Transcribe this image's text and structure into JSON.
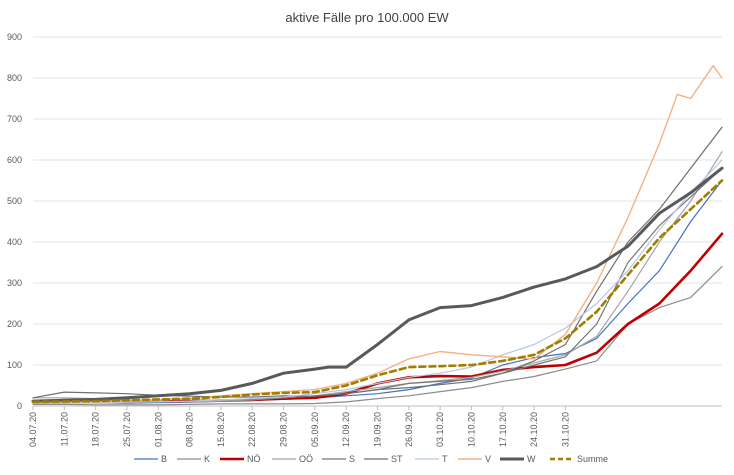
{
  "chart_data": {
    "type": "line",
    "title": "aktive Fälle pro 100.000 EW",
    "xlabel": "",
    "ylabel": "",
    "ylim": [
      0,
      900
    ],
    "yticks": [
      "0",
      "100",
      "200",
      "300",
      "400",
      "500",
      "600",
      "700",
      "800",
      "900"
    ],
    "xticks": [
      "04.07.20",
      "11.07.20",
      "18.07.20",
      "25.07.20",
      "01.08.20",
      "08.08.20",
      "15.08.20",
      "22.08.20",
      "29.08.20",
      "05.09.20",
      "12.09.20",
      "19.09.20",
      "26.09.20",
      "03.10.20",
      "10.10.20",
      "17.10.20",
      "24.10.20",
      "31.10.20"
    ],
    "grid": true,
    "legend_position": "bottom",
    "x_start": "04.07.20",
    "x_end": "04.11.20",
    "series": [
      {
        "name": "B",
        "color": "#4472c4",
        "width": 1.2,
        "dash": "",
        "points": [
          [
            0,
            8
          ],
          [
            7,
            9
          ],
          [
            14,
            8
          ],
          [
            21,
            7
          ],
          [
            28,
            8
          ],
          [
            35,
            9
          ],
          [
            42,
            12
          ],
          [
            49,
            14
          ],
          [
            56,
            16
          ],
          [
            63,
            20
          ],
          [
            70,
            25
          ],
          [
            77,
            30
          ],
          [
            84,
            40
          ],
          [
            91,
            55
          ],
          [
            98,
            68
          ],
          [
            105,
            100
          ],
          [
            112,
            118
          ],
          [
            119,
            128
          ],
          [
            126,
            165
          ],
          [
            133,
            250
          ],
          [
            140,
            330
          ],
          [
            147,
            450
          ],
          [
            154,
            550
          ]
        ]
      },
      {
        "name": "K",
        "color": "#8c8c8c",
        "width": 1.2,
        "dash": "",
        "points": [
          [
            0,
            4
          ],
          [
            7,
            4
          ],
          [
            14,
            3
          ],
          [
            21,
            3
          ],
          [
            28,
            3
          ],
          [
            35,
            4
          ],
          [
            42,
            5
          ],
          [
            49,
            5
          ],
          [
            56,
            5
          ],
          [
            63,
            6
          ],
          [
            70,
            10
          ],
          [
            77,
            18
          ],
          [
            84,
            25
          ],
          [
            91,
            35
          ],
          [
            98,
            45
          ],
          [
            105,
            60
          ],
          [
            112,
            72
          ],
          [
            119,
            90
          ],
          [
            126,
            110
          ],
          [
            133,
            200
          ],
          [
            140,
            240
          ],
          [
            147,
            265
          ],
          [
            154,
            340
          ]
        ]
      },
      {
        "name": "NÖ",
        "color": "#c00000",
        "width": 2.6,
        "dash": "",
        "points": [
          [
            0,
            10
          ],
          [
            7,
            10
          ],
          [
            14,
            10
          ],
          [
            21,
            11
          ],
          [
            28,
            12
          ],
          [
            35,
            12
          ],
          [
            42,
            13
          ],
          [
            49,
            15
          ],
          [
            56,
            18
          ],
          [
            63,
            20
          ],
          [
            70,
            30
          ],
          [
            77,
            55
          ],
          [
            84,
            70
          ],
          [
            91,
            73
          ],
          [
            98,
            72
          ],
          [
            105,
            88
          ],
          [
            112,
            95
          ],
          [
            119,
            100
          ],
          [
            126,
            130
          ],
          [
            133,
            200
          ],
          [
            140,
            250
          ],
          [
            147,
            330
          ],
          [
            154,
            420
          ]
        ]
      },
      {
        "name": "OÖ",
        "color": "#a5a5a5",
        "width": 1.2,
        "dash": "",
        "points": [
          [
            0,
            20
          ],
          [
            7,
            20
          ],
          [
            14,
            18
          ],
          [
            21,
            15
          ],
          [
            28,
            12
          ],
          [
            35,
            10
          ],
          [
            42,
            12
          ],
          [
            49,
            15
          ],
          [
            56,
            20
          ],
          [
            63,
            25
          ],
          [
            70,
            35
          ],
          [
            77,
            45
          ],
          [
            84,
            55
          ],
          [
            91,
            62
          ],
          [
            98,
            70
          ],
          [
            105,
            85
          ],
          [
            112,
            105
          ],
          [
            119,
            125
          ],
          [
            126,
            170
          ],
          [
            133,
            280
          ],
          [
            140,
            400
          ],
          [
            147,
            500
          ],
          [
            154,
            620
          ]
        ]
      },
      {
        "name": "S",
        "color": "#767676",
        "width": 1.2,
        "dash": "",
        "points": [
          [
            0,
            12
          ],
          [
            7,
            12
          ],
          [
            14,
            11
          ],
          [
            21,
            10
          ],
          [
            28,
            10
          ],
          [
            35,
            12
          ],
          [
            42,
            15
          ],
          [
            49,
            16
          ],
          [
            56,
            20
          ],
          [
            63,
            25
          ],
          [
            70,
            30
          ],
          [
            77,
            40
          ],
          [
            84,
            55
          ],
          [
            91,
            60
          ],
          [
            98,
            65
          ],
          [
            105,
            80
          ],
          [
            112,
            100
          ],
          [
            119,
            120
          ],
          [
            126,
            200
          ],
          [
            133,
            350
          ],
          [
            140,
            440
          ],
          [
            147,
            510
          ],
          [
            154,
            580
          ]
        ]
      },
      {
        "name": "ST",
        "color": "#6f6f6f",
        "width": 1.2,
        "dash": "",
        "points": [
          [
            0,
            20
          ],
          [
            7,
            34
          ],
          [
            14,
            32
          ],
          [
            21,
            30
          ],
          [
            28,
            26
          ],
          [
            35,
            24
          ],
          [
            42,
            22
          ],
          [
            49,
            22
          ],
          [
            56,
            25
          ],
          [
            63,
            24
          ],
          [
            70,
            30
          ],
          [
            77,
            40
          ],
          [
            84,
            45
          ],
          [
            91,
            52
          ],
          [
            98,
            60
          ],
          [
            105,
            80
          ],
          [
            112,
            110
          ],
          [
            119,
            150
          ],
          [
            126,
            280
          ],
          [
            133,
            400
          ],
          [
            140,
            480
          ],
          [
            147,
            580
          ],
          [
            154,
            680
          ]
        ]
      },
      {
        "name": "T",
        "color": "#b4c7e7",
        "width": 1.2,
        "dash": "",
        "points": [
          [
            0,
            8
          ],
          [
            7,
            8
          ],
          [
            14,
            8
          ],
          [
            21,
            9
          ],
          [
            28,
            10
          ],
          [
            35,
            12
          ],
          [
            42,
            15
          ],
          [
            49,
            18
          ],
          [
            56,
            22
          ],
          [
            63,
            30
          ],
          [
            70,
            40
          ],
          [
            77,
            55
          ],
          [
            84,
            70
          ],
          [
            91,
            80
          ],
          [
            98,
            95
          ],
          [
            105,
            125
          ],
          [
            112,
            150
          ],
          [
            119,
            190
          ],
          [
            126,
            250
          ],
          [
            133,
            330
          ],
          [
            140,
            430
          ],
          [
            147,
            520
          ],
          [
            154,
            600
          ]
        ]
      },
      {
        "name": "V",
        "color": "#f4b183",
        "width": 1.4,
        "dash": "",
        "points": [
          [
            0,
            10
          ],
          [
            7,
            10
          ],
          [
            14,
            10
          ],
          [
            21,
            12
          ],
          [
            28,
            15
          ],
          [
            35,
            18
          ],
          [
            42,
            25
          ],
          [
            49,
            30
          ],
          [
            56,
            35
          ],
          [
            63,
            40
          ],
          [
            70,
            55
          ],
          [
            77,
            80
          ],
          [
            84,
            115
          ],
          [
            91,
            133
          ],
          [
            98,
            125
          ],
          [
            105,
            120
          ],
          [
            112,
            115
          ],
          [
            119,
            175
          ],
          [
            126,
            300
          ],
          [
            133,
            460
          ],
          [
            140,
            640
          ],
          [
            144,
            760
          ],
          [
            147,
            750
          ],
          [
            152,
            830
          ],
          [
            154,
            800
          ]
        ]
      },
      {
        "name": "W",
        "color": "#595959",
        "width": 3.0,
        "dash": "",
        "points": [
          [
            0,
            12
          ],
          [
            7,
            14
          ],
          [
            14,
            16
          ],
          [
            21,
            20
          ],
          [
            28,
            25
          ],
          [
            35,
            30
          ],
          [
            42,
            38
          ],
          [
            49,
            55
          ],
          [
            56,
            80
          ],
          [
            63,
            90
          ],
          [
            66,
            95
          ],
          [
            70,
            95
          ],
          [
            77,
            150
          ],
          [
            84,
            210
          ],
          [
            91,
            240
          ],
          [
            98,
            245
          ],
          [
            105,
            265
          ],
          [
            112,
            290
          ],
          [
            119,
            310
          ],
          [
            126,
            340
          ],
          [
            133,
            390
          ],
          [
            140,
            470
          ],
          [
            147,
            520
          ],
          [
            154,
            580
          ]
        ]
      },
      {
        "name": "Summe",
        "color": "#a07f00",
        "width": 2.6,
        "dash": "6,4",
        "points": [
          [
            0,
            10
          ],
          [
            7,
            11
          ],
          [
            14,
            12
          ],
          [
            21,
            14
          ],
          [
            28,
            16
          ],
          [
            35,
            18
          ],
          [
            42,
            22
          ],
          [
            49,
            28
          ],
          [
            56,
            32
          ],
          [
            63,
            34
          ],
          [
            70,
            50
          ],
          [
            77,
            75
          ],
          [
            84,
            95
          ],
          [
            91,
            97
          ],
          [
            98,
            100
          ],
          [
            105,
            110
          ],
          [
            112,
            125
          ],
          [
            119,
            165
          ],
          [
            126,
            230
          ],
          [
            133,
            320
          ],
          [
            140,
            410
          ],
          [
            147,
            480
          ],
          [
            154,
            550
          ]
        ]
      }
    ]
  }
}
